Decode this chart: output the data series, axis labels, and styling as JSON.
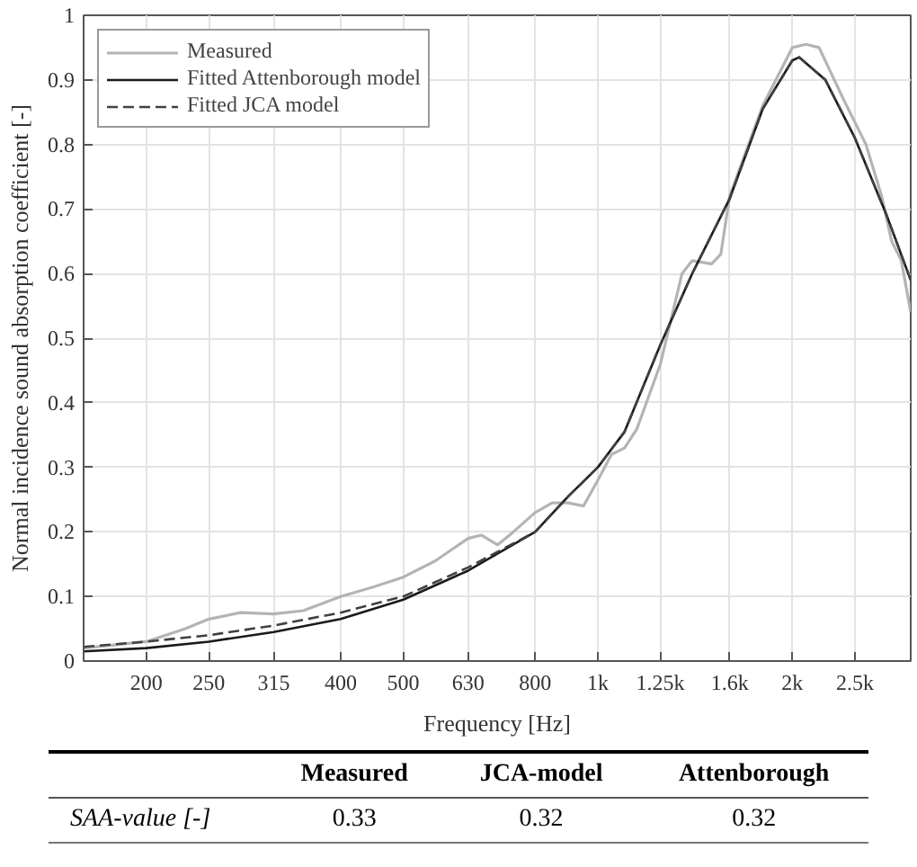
{
  "chart_data": {
    "type": "line",
    "xlabel": "Frequency [Hz]",
    "ylabel": "Normal incidence sound absorption coefficient [-]",
    "log": "x",
    "grid": true,
    "legend": "top left",
    "xlim": [
      160,
      3050
    ],
    "ylim": [
      0,
      1
    ],
    "xticks": [
      200,
      250,
      315,
      400,
      500,
      630,
      800,
      {
        "value": 1000,
        "label": "1k"
      },
      {
        "value": 1250,
        "label": "1.25k"
      },
      {
        "value": 1600,
        "label": "1.6k"
      },
      {
        "value": 2000,
        "label": "2k"
      },
      {
        "value": 2500,
        "label": "2.5k"
      }
    ],
    "yticks": [
      0,
      0.1,
      0.2,
      0.3,
      0.4,
      0.5,
      0.6,
      0.7,
      0.8,
      0.9,
      1
    ],
    "series": [
      {
        "name": "Measured",
        "color": "#b4b4b4",
        "line_style": "solid",
        "x": [
          160,
          200,
          230,
          250,
          280,
          315,
          350,
          400,
          450,
          500,
          560,
          630,
          660,
          700,
          740,
          800,
          850,
          900,
          950,
          1000,
          1050,
          1100,
          1150,
          1250,
          1350,
          1400,
          1500,
          1550,
          1600,
          1800,
          2000,
          2100,
          2200,
          2400,
          2600,
          2750,
          2850,
          2950,
          3050
        ],
        "values": [
          0.02,
          0.03,
          0.05,
          0.065,
          0.075,
          0.073,
          0.078,
          0.1,
          0.115,
          0.13,
          0.155,
          0.19,
          0.195,
          0.18,
          0.2,
          0.23,
          0.245,
          0.245,
          0.24,
          0.28,
          0.32,
          0.33,
          0.36,
          0.46,
          0.6,
          0.62,
          0.615,
          0.63,
          0.72,
          0.86,
          0.95,
          0.955,
          0.95,
          0.87,
          0.8,
          0.72,
          0.65,
          0.62,
          0.54
        ]
      },
      {
        "name": "Fitted Attenborough model",
        "color": "#1a1a1a",
        "line_style": "solid",
        "x": [
          160,
          200,
          250,
          315,
          400,
          500,
          630,
          800,
          900,
          1000,
          1100,
          1250,
          1400,
          1600,
          1800,
          2000,
          2050,
          2250,
          2500,
          2800,
          3050
        ],
        "values": [
          0.015,
          0.02,
          0.03,
          0.045,
          0.065,
          0.095,
          0.14,
          0.2,
          0.255,
          0.3,
          0.355,
          0.49,
          0.6,
          0.716,
          0.855,
          0.93,
          0.935,
          0.9,
          0.81,
          0.69,
          0.59
        ]
      },
      {
        "name": "Fitted JCA model",
        "color": "#404040",
        "line_style": "dashed",
        "x": [
          160,
          200,
          250,
          315,
          400,
          500,
          630,
          800,
          900,
          1000,
          1100,
          1250,
          1400,
          1600,
          1800,
          2000,
          2050,
          2250,
          2500,
          2800,
          3050
        ],
        "values": [
          0.022,
          0.03,
          0.04,
          0.055,
          0.075,
          0.1,
          0.145,
          0.2,
          0.255,
          0.3,
          0.355,
          0.49,
          0.6,
          0.716,
          0.855,
          0.93,
          0.935,
          0.9,
          0.81,
          0.69,
          0.59
        ]
      }
    ],
    "annotations": [
      "Measured",
      "JCA-model",
      "Attenborough",
      "SAA-value [-]",
      "0.33",
      "0.32",
      "0.32"
    ]
  }
}
